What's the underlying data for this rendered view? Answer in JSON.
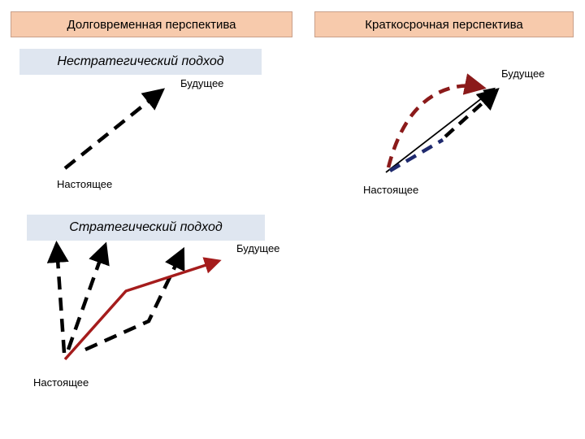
{
  "headers": {
    "long_term": "Долговременная перспектива",
    "short_term": "Краткосрочная перспектива"
  },
  "approaches": {
    "non_strategic": "Нестратегический подход",
    "strategic": "Стратегический подход"
  },
  "labels": {
    "nonstrat_future": "Будущее",
    "nonstrat_present": "Настоящее",
    "strat_future": "Будущее",
    "strat_present": "Настоящее",
    "short_future": "Будущее",
    "short_present": "Настоящее"
  },
  "colors": {
    "header_fill": "#f7caac",
    "approach_fill": "#dfe6f0",
    "dashed_arrow": "#000000",
    "red_arrow": "#a51c1c",
    "dark_red_dashed": "#8b1a1a",
    "navy_dashed": "#1f2a6e"
  }
}
